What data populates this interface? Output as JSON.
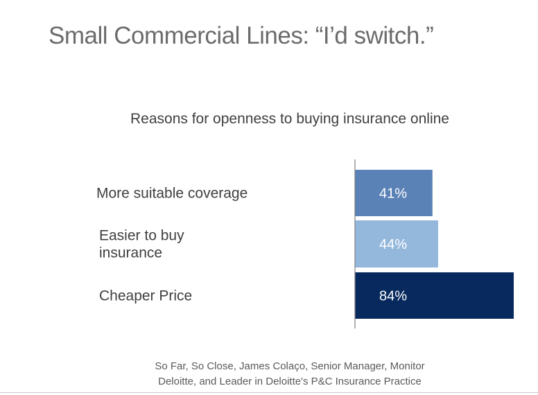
{
  "slide": {
    "title": "Small Commercial Lines: “I’d switch.”",
    "source_lines": [
      "So Far, So Close, James Colaço, Senior Manager, Monitor",
      "Deloitte, and Leader in Deloitte's P&C Insurance Practice"
    ]
  },
  "chart_data": {
    "type": "bar",
    "orientation": "horizontal",
    "title": "Reasons for openness to buying insurance online",
    "categories": [
      [
        "More suitable coverage"
      ],
      [
        "Easier to buy",
        "insurance"
      ],
      [
        "Cheaper Price"
      ]
    ],
    "values": [
      41,
      44,
      84
    ],
    "value_labels": [
      "41%",
      "44%",
      "84%"
    ],
    "colors": [
      "#5a82b6",
      "#94b8dc",
      "#07295e"
    ],
    "label_colors": [
      "#ffffff",
      "#ffffff",
      "#ffffff"
    ],
    "xlim": [
      0,
      84
    ],
    "grid": false,
    "legend": "none"
  }
}
